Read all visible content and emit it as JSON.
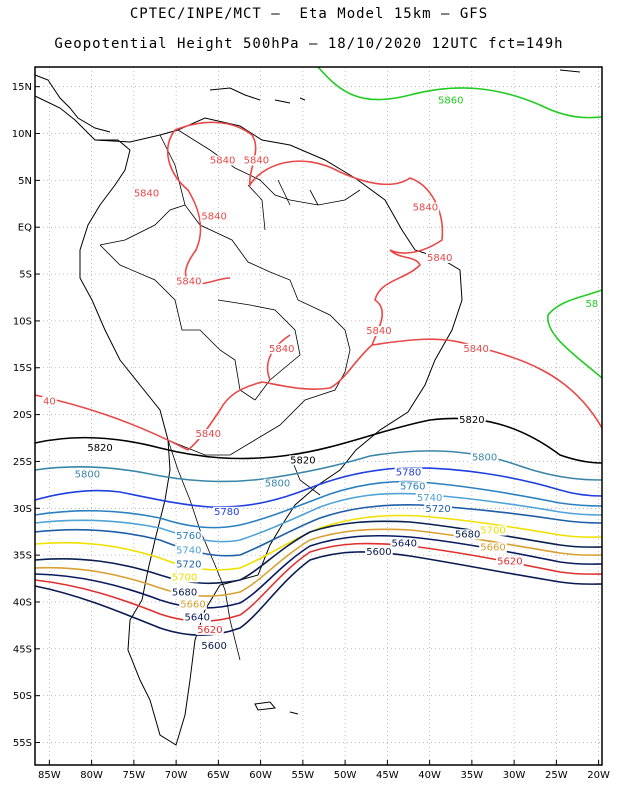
{
  "header": {
    "line1": "CPTEC/INPE/MCT –  Eta Model 15km – GFS",
    "line2": "Geopotential Height 500hPa – 18/10/2020 12UTC fct=149h"
  },
  "axes": {
    "lat_labels": [
      "15N",
      "10N",
      "5N",
      "EQ",
      "5S",
      "10S",
      "15S",
      "20S",
      "25S",
      "30S",
      "35S",
      "40S",
      "45S",
      "50S",
      "55S"
    ],
    "lon_labels": [
      "85W",
      "80W",
      "75W",
      "70W",
      "65W",
      "60W",
      "55W",
      "50W",
      "45W",
      "40W",
      "35W",
      "30W",
      "25W",
      "20W"
    ]
  },
  "colors": {
    "c5860": "#22cc22",
    "c5840": "#e84848",
    "c5820": "#000000",
    "c5800": "#3a86a8",
    "c5780": "#1f3fe0",
    "c5760": "#2a80c0",
    "c5740": "#4fa3d6",
    "c5720": "#1f5fa8",
    "c5700": "#f0e000",
    "c5680": "#0a2050",
    "c5660": "#d8a030",
    "c5640": "#0a1a60",
    "c5620": "#e03030",
    "c5600": "#0a1a50"
  },
  "contours": {
    "labels": [
      {
        "text": "5860",
        "color": "#22cc22",
        "lon": -37.5,
        "lat": 13.2
      },
      {
        "text": "58",
        "color": "#22cc22",
        "lon": -20.8,
        "lat": -8.5
      },
      {
        "text": "5840",
        "color": "#e84848",
        "lon": -64.5,
        "lat": 6.8
      },
      {
        "text": "5840",
        "color": "#e84848",
        "lon": -60.5,
        "lat": 6.8
      },
      {
        "text": "5840",
        "color": "#e84848",
        "lon": -73.5,
        "lat": 3.3
      },
      {
        "text": "5840",
        "color": "#e84848",
        "lon": -65.5,
        "lat": 0.8
      },
      {
        "text": "5840",
        "color": "#e84848",
        "lon": -40.5,
        "lat": 1.8
      },
      {
        "text": "5840",
        "color": "#e84848",
        "lon": -38.8,
        "lat": -3.6
      },
      {
        "text": "5840",
        "color": "#e84848",
        "lon": -68.5,
        "lat": -6.1
      },
      {
        "text": "5840",
        "color": "#e84848",
        "lon": -57.5,
        "lat": -13.3
      },
      {
        "text": "5840",
        "color": "#e84848",
        "lon": -46.0,
        "lat": -11.4
      },
      {
        "text": "5840",
        "color": "#e84848",
        "lon": -34.5,
        "lat": -13.3
      },
      {
        "text": "5840",
        "color": "#e84848",
        "lon": -66.2,
        "lat": -22.4
      },
      {
        "text": "40",
        "color": "#e84848",
        "lon": -85.0,
        "lat": -18.9
      },
      {
        "text": "5820",
        "color": "#000000",
        "lon": -79.0,
        "lat": -23.9
      },
      {
        "text": "5820",
        "color": "#000000",
        "lon": -55.0,
        "lat": -25.2
      },
      {
        "text": "5820",
        "color": "#000000",
        "lon": -35.0,
        "lat": -20.9
      },
      {
        "text": "5800",
        "color": "#3a86a8",
        "lon": -80.5,
        "lat": -26.7
      },
      {
        "text": "5800",
        "color": "#3a86a8",
        "lon": -58.0,
        "lat": -27.7
      },
      {
        "text": "5800",
        "color": "#3a86a8",
        "lon": -33.5,
        "lat": -24.9
      },
      {
        "text": "5780",
        "color": "#1f3fe0",
        "lon": -64.0,
        "lat": -30.7
      },
      {
        "text": "5780",
        "color": "#1f3fe0",
        "lon": -42.5,
        "lat": -26.5
      },
      {
        "text": "5760",
        "color": "#2a80c0",
        "lon": -68.5,
        "lat": -33.3
      },
      {
        "text": "5760",
        "color": "#2a80c0",
        "lon": -42.0,
        "lat": -28.0
      },
      {
        "text": "5740",
        "color": "#4fa3d6",
        "lon": -68.5,
        "lat": -34.8
      },
      {
        "text": "5740",
        "color": "#4fa3d6",
        "lon": -40.0,
        "lat": -29.2
      },
      {
        "text": "5720",
        "color": "#1f5fa8",
        "lon": -68.5,
        "lat": -36.3
      },
      {
        "text": "5720",
        "color": "#1f5fa8",
        "lon": -39.0,
        "lat": -30.4
      },
      {
        "text": "5700",
        "color": "#f0e000",
        "lon": -69.0,
        "lat": -37.7
      },
      {
        "text": "5700",
        "color": "#f0e000",
        "lon": -32.5,
        "lat": -32.7
      },
      {
        "text": "5680",
        "color": "#0a2050",
        "lon": -69.0,
        "lat": -39.3
      },
      {
        "text": "5680",
        "color": "#0a2050",
        "lon": -35.5,
        "lat": -33.1
      },
      {
        "text": "5660",
        "color": "#d8a030",
        "lon": -68.0,
        "lat": -40.6
      },
      {
        "text": "5660",
        "color": "#d8a030",
        "lon": -32.5,
        "lat": -34.5
      },
      {
        "text": "5640",
        "color": "#0a1a60",
        "lon": -67.5,
        "lat": -42.0
      },
      {
        "text": "5640",
        "color": "#0a1a60",
        "lon": -43.0,
        "lat": -34.1
      },
      {
        "text": "5620",
        "color": "#e03030",
        "lon": -66.0,
        "lat": -43.3
      },
      {
        "text": "5620",
        "color": "#e03030",
        "lon": -30.5,
        "lat": -36.0
      },
      {
        "text": "5600",
        "color": "#0a1a50",
        "lon": -65.5,
        "lat": -45.0
      },
      {
        "text": "5600",
        "color": "#0a1a50",
        "lon": -46.0,
        "lat": -35.0
      }
    ]
  }
}
